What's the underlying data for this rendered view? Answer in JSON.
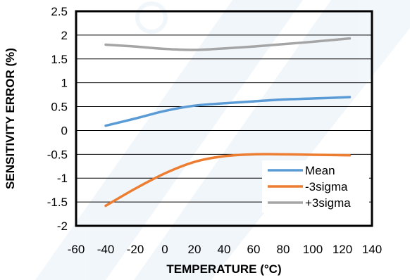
{
  "chart_data": {
    "type": "line",
    "xlabel": "TEMPERATURE (°C)",
    "ylabel": "SENSITIVITY ERROR (%)",
    "xlim": [
      -60,
      140
    ],
    "ylim": [
      -2,
      2.5
    ],
    "x_ticks": [
      "-60",
      "-40",
      "-20",
      "0",
      "20",
      "40",
      "60",
      "80",
      "100",
      "120",
      "140"
    ],
    "y_ticks": [
      "2.5",
      "2",
      "1.5",
      "1",
      "0.5",
      "0",
      "-0.5",
      "-1",
      "-1.5",
      "-2"
    ],
    "grid": "horizontal",
    "legend_position": "bottom-right",
    "series": [
      {
        "name": "Mean",
        "color": "#5b9bd5",
        "points": [
          [
            -40,
            0.1
          ],
          [
            -20,
            0.25
          ],
          [
            0,
            0.41
          ],
          [
            20,
            0.52
          ],
          [
            40,
            0.57
          ],
          [
            60,
            0.61
          ],
          [
            80,
            0.65
          ],
          [
            100,
            0.67
          ],
          [
            125,
            0.7
          ]
        ]
      },
      {
        "name": "-3sigma",
        "color": "#ed7d31",
        "points": [
          [
            -40,
            -1.58
          ],
          [
            -20,
            -1.22
          ],
          [
            0,
            -0.9
          ],
          [
            20,
            -0.66
          ],
          [
            40,
            -0.54
          ],
          [
            60,
            -0.5
          ],
          [
            80,
            -0.5
          ],
          [
            100,
            -0.51
          ],
          [
            125,
            -0.52
          ]
        ]
      },
      {
        "name": "+3sigma",
        "color": "#a5a5a5",
        "points": [
          [
            -40,
            1.8
          ],
          [
            -20,
            1.76
          ],
          [
            0,
            1.71
          ],
          [
            20,
            1.69
          ],
          [
            40,
            1.72
          ],
          [
            60,
            1.76
          ],
          [
            80,
            1.81
          ],
          [
            100,
            1.86
          ],
          [
            125,
            1.93
          ]
        ]
      }
    ]
  }
}
